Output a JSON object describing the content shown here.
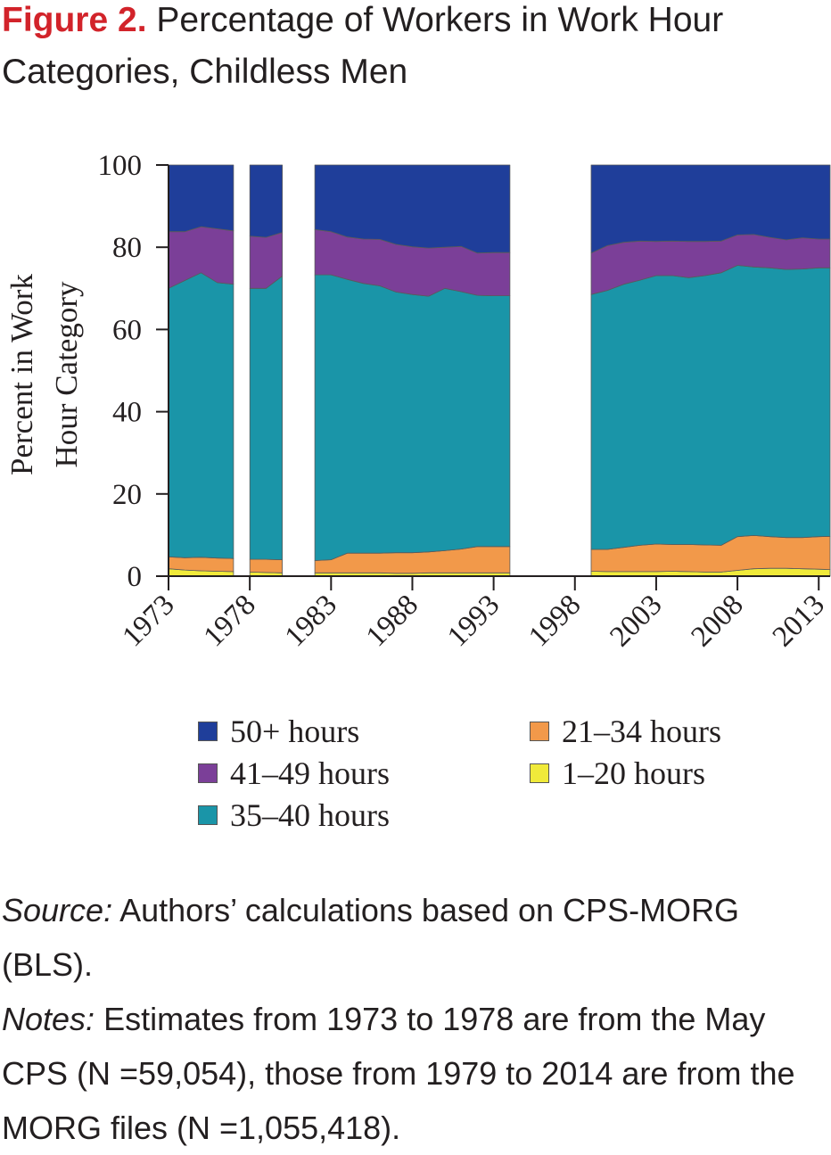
{
  "title": {
    "figure_label": "Figure 2.",
    "text": "Percentage of Workers in Work Hour Categories, Childless Men"
  },
  "footer": {
    "source_label": "Source:",
    "source_text": "Authors’ calculations based on CPS-MORG (BLS).",
    "notes_label": "Notes:",
    "notes_text": "Estimates from 1973 to 1978 are from the May CPS (N =59,054), those from 1979 to 2014 are from the MORG files (N =1,055,418)."
  },
  "legend": [
    {
      "label": "50+ hours",
      "color": "#1f3e9a"
    },
    {
      "label": "41–49 hours",
      "color": "#7b3f98"
    },
    {
      "label": "35–40 hours",
      "color": "#1a95a8"
    },
    {
      "label": "21–34 hours",
      "color": "#f2994a"
    },
    {
      "label": "1–20 hours",
      "color": "#f0ea3a"
    }
  ],
  "chart_data": {
    "type": "area",
    "stacked": true,
    "ylabel": "Percent in Work Hour Category",
    "xlabel": "",
    "ylim": [
      0,
      100
    ],
    "yticks": [
      0,
      20,
      40,
      60,
      80,
      100
    ],
    "xticks": [
      "1973",
      "1978",
      "1983",
      "1988",
      "1993",
      "1998",
      "2003",
      "2008",
      "2013"
    ],
    "xlim": [
      1973,
      2013.7
    ],
    "colors": {
      "50+ hours": "#1f3e9a",
      "41–49 hours": "#7b3f98",
      "35–40 hours": "#1a95a8",
      "21–34 hours": "#f2994a",
      "1–20 hours": "#f0ea3a"
    },
    "series_order": [
      "1–20 hours",
      "21–34 hours",
      "35–40 hours",
      "41–49 hours",
      "50+ hours"
    ],
    "segments": [
      {
        "x": [
          1973,
          1974,
          1975,
          1976,
          1977
        ],
        "1–20 hours": [
          1.8,
          1.5,
          1.3,
          1.2,
          1.1
        ],
        "21–34 hours": [
          2.9,
          3.0,
          3.3,
          3.2,
          3.2
        ],
        "35–40 hours": [
          65.3,
          67.4,
          69.2,
          67.0,
          66.7
        ],
        "41–49 hours": [
          13.8,
          11.9,
          11.2,
          13.1,
          13.0
        ],
        "50+ hours": [
          16.2,
          16.2,
          15.0,
          15.5,
          16.0
        ]
      },
      {
        "x": [
          1978,
          1979,
          1980
        ],
        "1–20 hours": [
          1.0,
          0.9,
          0.8
        ],
        "21–34 hours": [
          3.1,
          3.2,
          3.2
        ],
        "35–40 hours": [
          65.9,
          65.9,
          69.0
        ],
        "41–49 hours": [
          12.7,
          12.4,
          10.6
        ],
        "50+ hours": [
          17.3,
          17.6,
          16.4
        ]
      },
      {
        "x": [
          1982,
          1983,
          1984,
          1985,
          1986,
          1987,
          1988,
          1989,
          1990,
          1991,
          1992,
          1993,
          1994
        ],
        "1–20 hours": [
          0.8,
          0.8,
          0.8,
          0.8,
          0.8,
          0.7,
          0.7,
          0.8,
          0.8,
          0.8,
          0.8,
          0.8,
          0.8
        ],
        "21–34 hours": [
          3.0,
          3.2,
          4.8,
          4.8,
          4.8,
          5.0,
          5.0,
          5.1,
          5.4,
          5.8,
          6.4,
          6.4,
          6.4
        ],
        "35–40 hours": [
          69.5,
          69.3,
          66.6,
          65.6,
          65.0,
          63.4,
          62.8,
          62.2,
          63.8,
          62.6,
          61.1,
          61.0,
          61.0
        ],
        "41–49 hours": [
          11.0,
          10.5,
          10.3,
          10.8,
          11.3,
          11.6,
          11.6,
          11.7,
          10.0,
          11.0,
          10.3,
          10.5,
          10.5
        ],
        "50+ hours": [
          15.7,
          16.2,
          17.5,
          18.0,
          18.1,
          19.3,
          19.9,
          20.2,
          20.0,
          19.8,
          21.4,
          21.3,
          21.3
        ]
      },
      {
        "x": [
          1999,
          2000,
          2001,
          2002,
          2003,
          2004,
          2005,
          2006,
          2007,
          2008,
          2009,
          2010,
          2011,
          2012,
          2013,
          2013.7
        ],
        "1–20 hours": [
          1.2,
          1.1,
          1.1,
          1.1,
          1.1,
          1.2,
          1.1,
          1.0,
          1.0,
          1.4,
          1.8,
          1.9,
          1.9,
          1.8,
          1.7,
          1.6
        ],
        "21–34 hours": [
          5.3,
          5.4,
          5.9,
          6.4,
          6.7,
          6.5,
          6.6,
          6.6,
          6.5,
          8.2,
          8.1,
          7.7,
          7.5,
          7.6,
          7.9,
          8.1
        ],
        "35–40 hours": [
          62.0,
          63.0,
          64.0,
          64.5,
          65.3,
          65.4,
          64.9,
          65.5,
          66.3,
          66.0,
          65.3,
          65.4,
          65.2,
          65.3,
          65.4,
          65.3
        ],
        "41–49 hours": [
          10.1,
          10.9,
          10.2,
          9.5,
          8.3,
          8.4,
          8.8,
          8.3,
          7.7,
          7.4,
          7.9,
          7.4,
          7.2,
          7.6,
          7.0,
          7.0
        ],
        "50+ hours": [
          21.4,
          19.6,
          18.8,
          18.5,
          18.6,
          18.5,
          18.6,
          18.6,
          18.5,
          17.0,
          16.9,
          17.6,
          18.2,
          17.7,
          18.0,
          18.0
        ]
      }
    ]
  }
}
